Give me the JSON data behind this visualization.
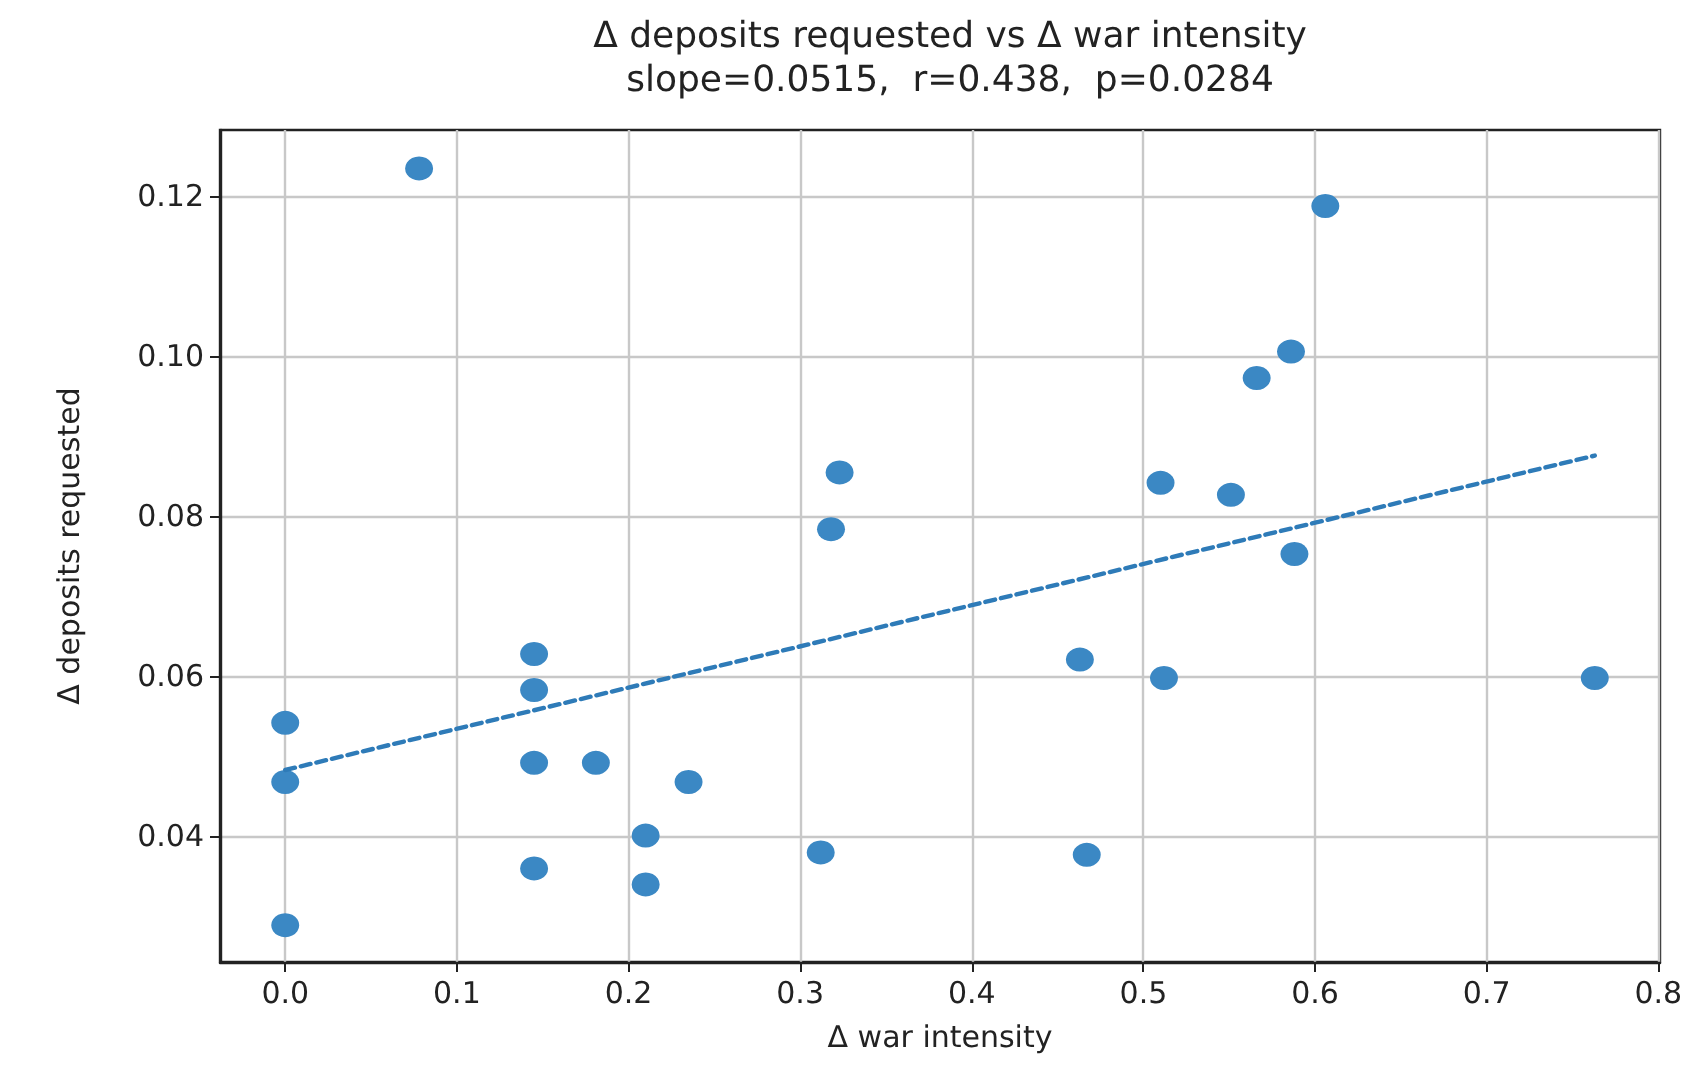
{
  "chart_data": {
    "type": "scatter",
    "title": "Δ deposits requested vs Δ war intensity",
    "subtitle": "slope=0.0515,  r=0.438,  p=0.0284",
    "xlabel": "Δ war intensity",
    "ylabel": "Δ deposits requested",
    "xlim": [
      -0.038,
      0.801
    ],
    "ylim": [
      0.0242,
      0.1282
    ],
    "xticks": [
      {
        "value": 0,
        "label": "0.0"
      },
      {
        "value": 0.1,
        "label": "0.1"
      },
      {
        "value": 0.2,
        "label": "0.2"
      },
      {
        "value": 0.3,
        "label": "0.3"
      },
      {
        "value": 0.4,
        "label": "0.4"
      },
      {
        "value": 0.5,
        "label": "0.5"
      },
      {
        "value": 0.6,
        "label": "0.6"
      },
      {
        "value": 0.7,
        "label": "0.7"
      },
      {
        "value": 0.8,
        "label": "0.8"
      }
    ],
    "yticks": [
      {
        "value": 0.04,
        "label": "0.04"
      },
      {
        "value": 0.06,
        "label": "0.06"
      },
      {
        "value": 0.08,
        "label": "0.08"
      },
      {
        "value": 0.1,
        "label": "0.10"
      },
      {
        "value": 0.12,
        "label": "0.12"
      }
    ],
    "grid": true,
    "marker": "circle",
    "series": [
      {
        "color": "#3b88c4",
        "x": [
          0,
          0,
          0,
          0.078,
          0.145,
          0.145,
          0.145,
          0.145,
          0.181,
          0.21,
          0.21,
          0.235,
          0.312,
          0.318,
          0.323,
          0.606,
          0.586,
          0.566,
          0.51,
          0.551,
          0.588,
          0.463,
          0.512,
          0.467,
          0.763
        ],
        "values": [
          0.0288,
          0.0467,
          0.0541,
          0.1234,
          0.0627,
          0.0582,
          0.0491,
          0.0359,
          0.0491,
          0.04,
          0.0339,
          0.0467,
          0.0379,
          0.0783,
          0.0854,
          0.1187,
          0.1005,
          0.0972,
          0.0841,
          0.0826,
          0.0752,
          0.062,
          0.0597,
          0.0376,
          0.0597
        ]
      },
      {
        "type": "line",
        "color": "#2e7bb8",
        "line_style": "dashed",
        "marker": "none",
        "x": [
          0,
          0.763
        ],
        "values": [
          0.0482,
          0.0875
        ]
      }
    ]
  }
}
